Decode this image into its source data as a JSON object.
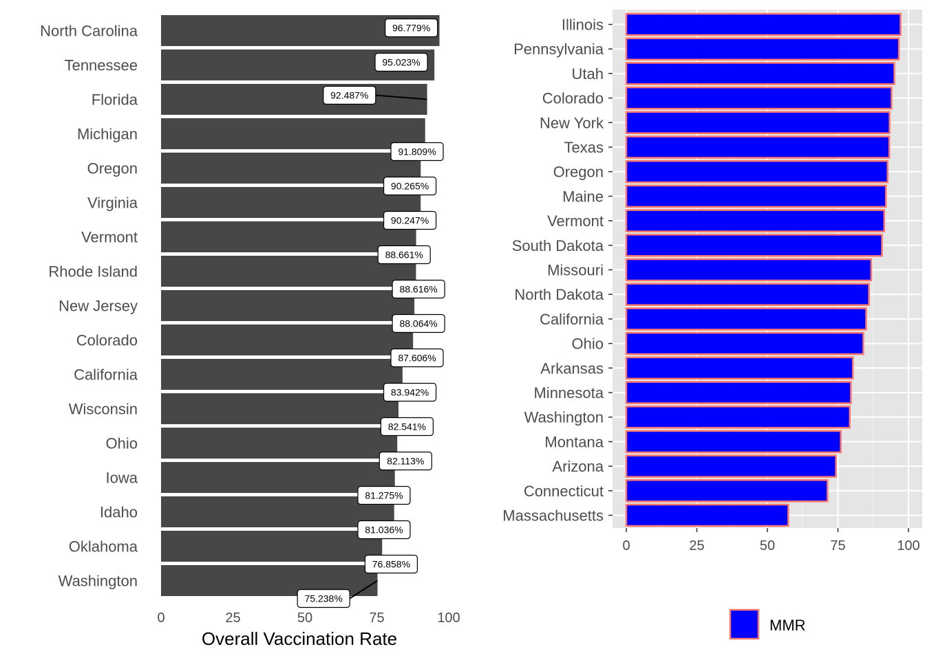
{
  "chart_data": [
    {
      "type": "bar",
      "orientation": "horizontal",
      "title": "",
      "xlabel": "Overall Vaccination Rate",
      "ylabel": "",
      "xlim": [
        0,
        100
      ],
      "x_ticks": [
        "0",
        "25",
        "50",
        "75",
        "100"
      ],
      "categories": [
        "North Carolina",
        "Tennessee",
        "Florida",
        "Michigan",
        "Oregon",
        "Virginia",
        "Vermont",
        "Rhode Island",
        "New Jersey",
        "Colorado",
        "California",
        "Wisconsin",
        "Ohio",
        "Iowa",
        "Idaho",
        "Oklahoma",
        "Washington"
      ],
      "values": [
        96.779,
        95.023,
        92.487,
        91.809,
        90.265,
        90.247,
        88.661,
        88.616,
        88.064,
        87.606,
        83.942,
        82.541,
        82.113,
        81.275,
        81.036,
        76.858,
        75.238
      ],
      "bar_color": "#474747",
      "labels": [
        "96.779%",
        "95.023%",
        "92.487%",
        "91.809%",
        "90.265%",
        "90.247%",
        "88.661%",
        "88.616%",
        "88.064%",
        "87.606%",
        "83.942%",
        "82.541%",
        "82.113%",
        "81.275%",
        "81.036%",
        "76.858%",
        "75.238%"
      ],
      "grid": false
    },
    {
      "type": "bar",
      "orientation": "horizontal",
      "title": "",
      "xlabel": "",
      "ylabel": "",
      "xlim": [
        0,
        100
      ],
      "x_ticks": [
        "0",
        "25",
        "50",
        "75",
        "100"
      ],
      "categories": [
        "Illinois",
        "Pennsylvania",
        "Utah",
        "Colorado",
        "New York",
        "Texas",
        "Oregon",
        "Maine",
        "Vermont",
        "South Dakota",
        "Missouri",
        "North Dakota",
        "California",
        "Ohio",
        "Arkansas",
        "Minnesota",
        "Washington",
        "Montana",
        "Arizona",
        "Connecticut",
        "Massachusetts"
      ],
      "series": [
        {
          "name": "MMR",
          "values": [
            97.2,
            96.6,
            95.0,
            94.0,
            93.3,
            93.2,
            92.6,
            92.0,
            91.4,
            90.6,
            86.8,
            86.0,
            85.0,
            84.0,
            80.3,
            79.6,
            79.2,
            76.0,
            74.3,
            71.3,
            57.4
          ]
        }
      ],
      "fill_color": "#0000ff",
      "outline_color": "#f8766d",
      "panel_color": "#e5e5e5",
      "grid": true,
      "legend_position": "bottom"
    }
  ]
}
